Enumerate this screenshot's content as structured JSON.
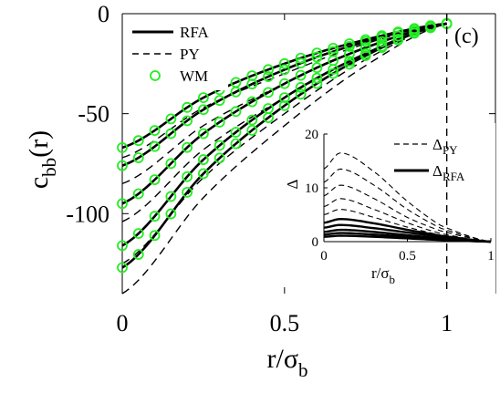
{
  "chart_data": [
    {
      "type": "line",
      "panel_label": "(c)",
      "xlabel": {
        "base": "r/σ",
        "sub": "b"
      },
      "ylabel": {
        "base": "c",
        "sub": "bb",
        "suffix": "(r)"
      },
      "xlim": [
        0,
        1.15
      ],
      "ylim": [
        -140,
        0
      ],
      "xticks": [
        0,
        0.5,
        1
      ],
      "xtick_labels": [
        "0",
        "0.5",
        "1"
      ],
      "yticks": [
        0,
        -50,
        -100
      ],
      "ytick_labels": [
        "0",
        "-50",
        "-100"
      ],
      "grid": false,
      "legend": {
        "placement": "top-left",
        "entries": [
          {
            "label": "RFA",
            "style": "solid"
          },
          {
            "label": "PY",
            "style": "dashed"
          },
          {
            "label": "WM",
            "style": "circle",
            "color": "#22ee22"
          }
        ]
      },
      "vertical_reference_line": {
        "x": 1,
        "style": "dashed"
      },
      "series_rfa": [
        {
          "x": [
            0,
            0.25,
            0.5,
            0.75,
            1
          ],
          "y": [
            -67,
            -42,
            -25,
            -13,
            -5
          ]
        },
        {
          "x": [
            0,
            0.25,
            0.5,
            0.75,
            1
          ],
          "y": [
            -76,
            -48,
            -28,
            -14,
            -5
          ]
        },
        {
          "x": [
            0,
            0.25,
            0.5,
            0.75,
            1
          ],
          "y": [
            -95,
            -60,
            -35,
            -17,
            -5
          ]
        },
        {
          "x": [
            0,
            0.25,
            0.5,
            0.75,
            1
          ],
          "y": [
            -116,
            -73,
            -42,
            -20,
            -5
          ]
        },
        {
          "x": [
            0,
            0.25,
            0.5,
            0.75,
            1
          ],
          "y": [
            -127,
            -80,
            -46,
            -21,
            -5
          ]
        }
      ],
      "series_py": [
        {
          "x": [
            0,
            0.25,
            0.5,
            0.75,
            1
          ],
          "y": [
            -72,
            -47,
            -30,
            -15,
            -5
          ]
        },
        {
          "x": [
            0,
            0.25,
            0.5,
            0.75,
            1
          ],
          "y": [
            -85,
            -56,
            -35,
            -17,
            -5
          ]
        },
        {
          "x": [
            0,
            0.25,
            0.5,
            0.75,
            1
          ],
          "y": [
            -104,
            -68,
            -42,
            -20,
            -5
          ]
        },
        {
          "x": [
            0,
            0.25,
            0.5,
            0.75,
            1
          ],
          "y": [
            -125,
            -82,
            -50,
            -23,
            -5
          ]
        },
        {
          "x": [
            0,
            0.25,
            0.5,
            0.75,
            1
          ],
          "y": [
            -140,
            -92,
            -56,
            -26,
            -5
          ]
        }
      ],
      "wm_x": [
        0,
        0.05,
        0.1,
        0.15,
        0.2,
        0.25,
        0.3,
        0.35,
        0.4,
        0.45,
        0.5,
        0.55,
        0.6,
        0.65,
        0.7,
        0.75,
        0.8,
        0.85,
        0.9,
        0.95,
        1
      ]
    },
    {
      "type": "line",
      "inset": true,
      "xlabel": {
        "base": "r/σ",
        "sub": "b"
      },
      "ylabel": "Δ",
      "xlim": [
        0,
        1
      ],
      "ylim": [
        0,
        20
      ],
      "xticks": [
        0,
        0.5,
        1
      ],
      "xtick_labels": [
        "0",
        "0.5",
        "1"
      ],
      "yticks": [
        0,
        10,
        20
      ],
      "ytick_labels": [
        "0",
        "10",
        "20"
      ],
      "legend": {
        "placement": "top-right",
        "entries": [
          {
            "label": {
              "base": "Δ",
              "sub": "PY"
            },
            "style": "dashed"
          },
          {
            "label": {
              "base": "Δ",
              "sub": "RFA"
            },
            "style": "solid"
          }
        ]
      },
      "series_py": [
        {
          "x": [
            0,
            0.1,
            0.3,
            0.5,
            0.7,
            1
          ],
          "y": [
            13.5,
            16.5,
            13,
            7.5,
            3,
            0
          ]
        },
        {
          "x": [
            0,
            0.1,
            0.3,
            0.5,
            0.7,
            1
          ],
          "y": [
            11,
            13.5,
            10.5,
            6,
            2.5,
            0
          ]
        },
        {
          "x": [
            0,
            0.1,
            0.3,
            0.5,
            0.7,
            1
          ],
          "y": [
            8.5,
            10.5,
            8,
            4.5,
            2,
            0
          ]
        },
        {
          "x": [
            0,
            0.1,
            0.3,
            0.5,
            0.7,
            1
          ],
          "y": [
            6.5,
            8,
            6,
            3.5,
            1.5,
            0
          ]
        },
        {
          "x": [
            0,
            0.1,
            0.3,
            0.5,
            0.7,
            1
          ],
          "y": [
            5,
            6,
            4.5,
            2.7,
            1.2,
            0
          ]
        }
      ],
      "series_rfa": [
        {
          "x": [
            0,
            0.1,
            0.3,
            0.5,
            0.7,
            1
          ],
          "y": [
            3.5,
            4.2,
            3.4,
            2.2,
            1.1,
            0
          ]
        },
        {
          "x": [
            0,
            0.1,
            0.3,
            0.5,
            0.7,
            1
          ],
          "y": [
            2.6,
            3.1,
            2.5,
            1.7,
            0.9,
            0
          ]
        },
        {
          "x": [
            0,
            0.1,
            0.3,
            0.5,
            0.7,
            1
          ],
          "y": [
            1.8,
            2.2,
            1.8,
            1.2,
            0.6,
            0
          ]
        },
        {
          "x": [
            0,
            0.1,
            0.3,
            0.5,
            0.7,
            1
          ],
          "y": [
            1.3,
            1.6,
            1.3,
            0.9,
            0.4,
            0
          ]
        },
        {
          "x": [
            0,
            0.1,
            0.3,
            0.5,
            0.7,
            1
          ],
          "y": [
            0.9,
            1.1,
            0.9,
            0.6,
            0.3,
            0
          ]
        }
      ]
    }
  ]
}
